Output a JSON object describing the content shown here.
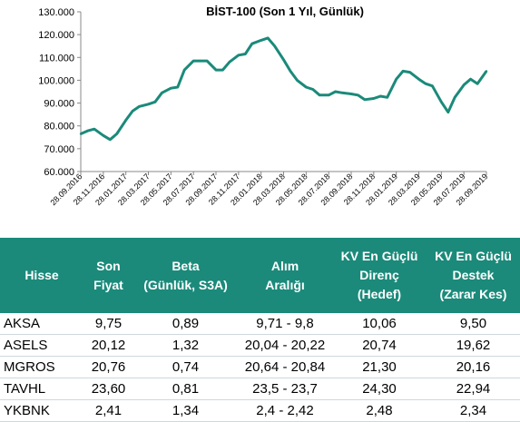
{
  "chart_data": {
    "type": "line",
    "title": "BİST-100 (Son 1 Yıl, Günlük)",
    "ylim": [
      60000,
      130000
    ],
    "yticks": [
      "60.000",
      "70.000",
      "80.000",
      "90.000",
      "100.000",
      "110.000",
      "120.000",
      "130.000"
    ],
    "xticks": [
      "28.09.2016",
      "28.11.2016",
      "28.01.2017",
      "28.03.2017",
      "28.05.2017",
      "28.07.2017",
      "28.09.2017",
      "28.11.2017",
      "28.01.2018",
      "28.03.2018",
      "28.05.2018",
      "28.07.2018",
      "28.09.2018",
      "28.11.2018",
      "28.01.2019",
      "28.03.2019",
      "28.05.2019",
      "28.07.2019",
      "28.09.2019"
    ],
    "series_color": "#1b8a7a",
    "grid": false,
    "series": [
      {
        "x": [
          0,
          0.3,
          0.6,
          1.0,
          1.3,
          1.6,
          2.0,
          2.3,
          2.6,
          3.0,
          3.3,
          3.6,
          4.0,
          4.3,
          4.6,
          5.0,
          5.3,
          5.6,
          6.0,
          6.3,
          6.6,
          7.0,
          7.3,
          7.6,
          8.0,
          8.3,
          8.6,
          9.0,
          9.3,
          9.6,
          10.0,
          10.3,
          10.6,
          11.0,
          11.3,
          11.6,
          12.0,
          12.3,
          12.6,
          13.0,
          13.3,
          13.6,
          14.0,
          14.3,
          14.6,
          15.0,
          15.3,
          15.6,
          16.0,
          16.3,
          16.6,
          17.0,
          17.3,
          17.6,
          18.0
        ],
        "values": [
          76500,
          77800,
          78600,
          75800,
          74000,
          76500,
          82500,
          86500,
          88500,
          89500,
          90500,
          94500,
          96500,
          97000,
          104500,
          108500,
          108500,
          108500,
          104500,
          104500,
          108000,
          111000,
          111500,
          116000,
          117500,
          118500,
          115000,
          109000,
          104000,
          100000,
          97000,
          96000,
          93500,
          93500,
          95000,
          94500,
          94000,
          93500,
          91500,
          92000,
          93000,
          92500,
          100500,
          104000,
          103500,
          100500,
          98500,
          97500,
          90500,
          86000,
          92500,
          98000,
          100500,
          98500,
          104000
        ]
      }
    ]
  },
  "table": {
    "headers": [
      [
        "Hisse"
      ],
      [
        "Son",
        "Fiyat"
      ],
      [
        "Beta",
        "(Günlük, S3A)"
      ],
      [
        "Alım",
        "Aralığı"
      ],
      [
        "KV En Güçlü",
        "Direnç",
        "(Hedef)"
      ],
      [
        "KV En Güçlü",
        "Destek",
        "(Zarar Kes)"
      ]
    ],
    "rows": [
      [
        "AKSA",
        "9,75",
        "0,89",
        "9,71 - 9,8",
        "10,06",
        "9,50"
      ],
      [
        "ASELS",
        "20,12",
        "1,32",
        "20,04 - 20,22",
        "20,74",
        "19,62"
      ],
      [
        "MGROS",
        "20,76",
        "0,74",
        "20,64 - 20,84",
        "21,30",
        "20,16"
      ],
      [
        "TAVHL",
        "23,60",
        "0,81",
        "23,5 - 23,7",
        "24,30",
        "22,94"
      ],
      [
        "YKBNK",
        "2,41",
        "1,34",
        "2,4 - 2,42",
        "2,48",
        "2,34"
      ]
    ]
  }
}
